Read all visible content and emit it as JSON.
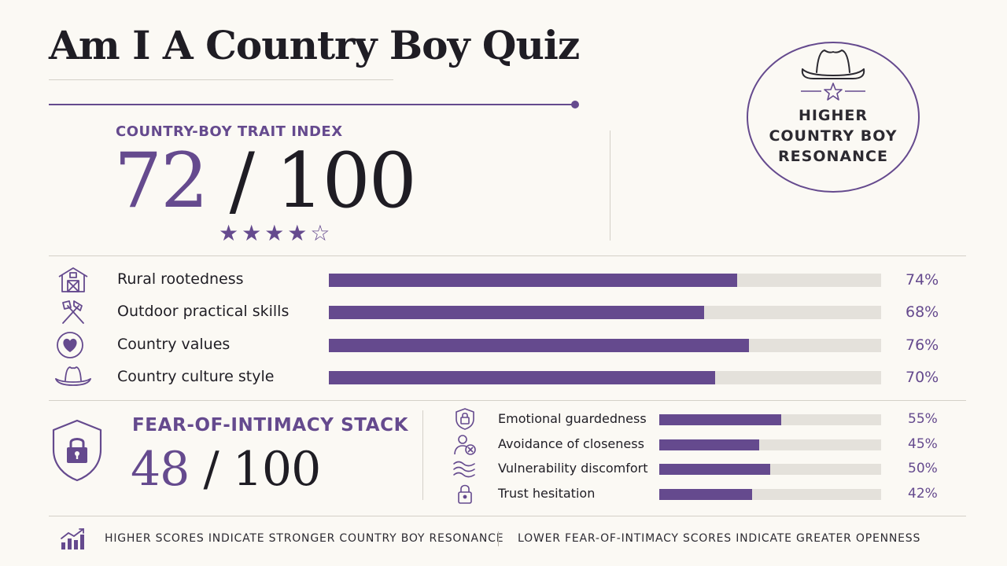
{
  "title": "Am I A Country Boy Quiz",
  "badge": {
    "icons": [
      "cowboy-hat-icon",
      "star-icon"
    ],
    "lines": [
      "HIGHER",
      "COUNTRY BOY",
      "RESONANCE"
    ]
  },
  "trait_index": {
    "label": "COUNTRY-BOY TRAIT INDEX",
    "score": "72",
    "out_of": "/ 100",
    "stars": "★★★★☆",
    "stars_rating": 4,
    "stars_max": 5
  },
  "traits": [
    {
      "icon": "barn-icon",
      "name": "Rural rootedness",
      "percent": 74,
      "label": "74%"
    },
    {
      "icon": "crossed-tools-icon",
      "name": "Outdoor practical skills",
      "percent": 68,
      "label": "68%"
    },
    {
      "icon": "heart-icon",
      "name": "Country values",
      "percent": 76,
      "label": "76%"
    },
    {
      "icon": "cowboy-hat-icon",
      "name": "Country culture style",
      "percent": 70,
      "label": "70%"
    }
  ],
  "fear_stack": {
    "icon": "shield-lock-icon",
    "label": "FEAR-OF-INTIMACY STACK",
    "score": "48",
    "out_of": "/ 100",
    "items": [
      {
        "icon": "shield-lock-icon",
        "name": "Emotional guardedness",
        "percent": 55,
        "label": "55%"
      },
      {
        "icon": "person-blocked-icon",
        "name": "Avoidance of closeness",
        "percent": 45,
        "label": "45%"
      },
      {
        "icon": "waves-icon",
        "name": "Vulnerability discomfort",
        "percent": 50,
        "label": "50%"
      },
      {
        "icon": "padlock-icon",
        "name": "Trust hesitation",
        "percent": 42,
        "label": "42%"
      }
    ]
  },
  "footer": {
    "icon": "bar-chart-trend-icon",
    "left": "HIGHER SCORES INDICATE STRONGER COUNTRY BOY RESONANCE",
    "right": "LOWER FEAR-OF-INTIMACY SCORES INDICATE GREATER OPENNESS"
  },
  "colors": {
    "accent": "#654a8e",
    "track": "#e4e1db",
    "background": "#fbf9f4",
    "text": "#1f1d24"
  }
}
